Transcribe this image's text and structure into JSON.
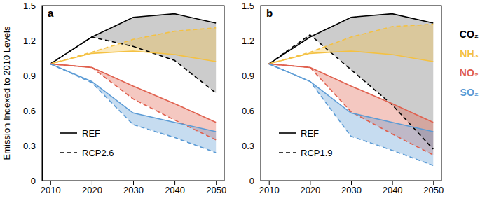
{
  "chart_data": [
    {
      "type": "line",
      "title": "a",
      "ylabel": "Emission Indexed to 2010 Levels",
      "x": [
        2010,
        2020,
        2030,
        2040,
        2050
      ],
      "xlim": [
        2008,
        2052
      ],
      "xticks": [
        2010,
        2020,
        2030,
        2040,
        2050
      ],
      "ylim": [
        0,
        1.5
      ],
      "yticks": [
        0,
        0.3,
        0.6,
        0.9,
        1.2,
        1.5
      ],
      "grid": false,
      "line_legend": [
        {
          "label": "REF",
          "line_style": "solid"
        },
        {
          "label": "RCP2.6",
          "line_style": "dashed"
        }
      ],
      "series": [
        {
          "color": "#000000",
          "line_style": "solid",
          "values": [
            1.0,
            1.23,
            1.4,
            1.43,
            1.35
          ]
        },
        {
          "color": "#000000",
          "line_style": "dashed",
          "values": [
            1.0,
            1.23,
            1.15,
            1.03,
            0.75
          ]
        },
        {
          "color": "#f4c142",
          "line_style": "solid",
          "values": [
            1.0,
            1.09,
            1.11,
            1.08,
            1.02
          ]
        },
        {
          "color": "#f4c142",
          "line_style": "dashed",
          "values": [
            1.0,
            1.1,
            1.21,
            1.28,
            1.31
          ]
        },
        {
          "color": "#e0604e",
          "line_style": "solid",
          "values": [
            1.0,
            0.97,
            0.81,
            0.66,
            0.5
          ]
        },
        {
          "color": "#e0604e",
          "line_style": "dashed",
          "values": [
            1.0,
            0.97,
            0.7,
            0.52,
            0.35
          ]
        },
        {
          "color": "#5b9bd5",
          "line_style": "solid",
          "values": [
            1.0,
            0.85,
            0.58,
            0.5,
            0.42
          ]
        },
        {
          "color": "#5b9bd5",
          "line_style": "dashed",
          "values": [
            1.0,
            0.84,
            0.48,
            0.37,
            0.24
          ]
        }
      ]
    },
    {
      "type": "line",
      "title": "b",
      "x": [
        2010,
        2020,
        2030,
        2040,
        2050
      ],
      "xlim": [
        2008,
        2052
      ],
      "xticks": [
        2010,
        2020,
        2030,
        2040,
        2050
      ],
      "ylim": [
        0,
        1.5
      ],
      "yticks": [
        0,
        0.3,
        0.6,
        0.9,
        1.2,
        1.5
      ],
      "grid": false,
      "line_legend": [
        {
          "label": "REF",
          "line_style": "solid"
        },
        {
          "label": "RCP1.9",
          "line_style": "dashed"
        }
      ],
      "series": [
        {
          "color": "#000000",
          "line_style": "solid",
          "values": [
            1.0,
            1.23,
            1.4,
            1.43,
            1.35
          ]
        },
        {
          "color": "#000000",
          "line_style": "dashed",
          "values": [
            1.0,
            1.25,
            0.95,
            0.65,
            0.27
          ]
        },
        {
          "color": "#f4c142",
          "line_style": "solid",
          "values": [
            1.0,
            1.09,
            1.11,
            1.08,
            1.02
          ]
        },
        {
          "color": "#f4c142",
          "line_style": "dashed",
          "values": [
            1.0,
            1.1,
            1.23,
            1.32,
            1.34
          ]
        },
        {
          "color": "#e0604e",
          "line_style": "solid",
          "values": [
            1.0,
            0.97,
            0.81,
            0.66,
            0.5
          ]
        },
        {
          "color": "#e0604e",
          "line_style": "dashed",
          "values": [
            1.0,
            0.97,
            0.59,
            0.4,
            0.22
          ]
        },
        {
          "color": "#5b9bd5",
          "line_style": "solid",
          "values": [
            1.0,
            0.85,
            0.58,
            0.5,
            0.42
          ]
        },
        {
          "color": "#5b9bd5",
          "line_style": "dashed",
          "values": [
            1.0,
            0.85,
            0.38,
            0.26,
            0.13
          ]
        }
      ]
    }
  ],
  "color_legend": [
    {
      "name": "CO₂",
      "color": "#000000"
    },
    {
      "name": "NH₃",
      "color": "#f4c142"
    },
    {
      "name": "NO₂",
      "color": "#e0604e"
    },
    {
      "name": "SO₂",
      "color": "#5b9bd5"
    }
  ]
}
